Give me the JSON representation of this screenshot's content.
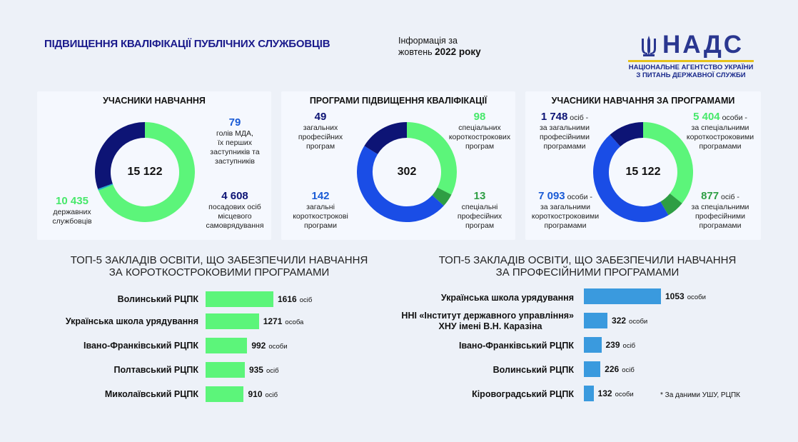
{
  "header": {
    "title": "ПІДВИЩЕННЯ КВАЛІФІКАЦІЇ ПУБЛІЧНИХ СЛУЖБОВЦІВ",
    "info_line1": "Інформація за",
    "info_line2_prefix": "жовтень ",
    "info_line2_bold": "2022 року",
    "logo_text": "НАДС",
    "logo_sub": "НАЦІОНАЛЬНЕ АГЕНТСТВО УКРАЇНИ З ПИТАНЬ ДЕРЖАВНОЇ СЛУЖБИ"
  },
  "colors": {
    "green": "#5cf57a",
    "navy": "#0d1475",
    "blue": "#1a4de6",
    "darkgreen": "#2e9e44",
    "teal": "#1ab0c8",
    "barblue": "#3a9ade"
  },
  "chart_data": [
    {
      "type": "pie",
      "title": "УЧАСНИКИ НАВЧАННЯ",
      "total": "15 122",
      "slices": [
        {
          "label": "державних службовців",
          "value": 10435,
          "display": "10 435",
          "color": "#5cf57a"
        },
        {
          "label": "голів МДА, їх перших заступників та заступників",
          "value": 79,
          "display": "79",
          "color": "#1ab0c8"
        },
        {
          "label": "посадових осіб місцевого самоврядування",
          "value": 4608,
          "display": "4 608",
          "color": "#0d1475"
        }
      ]
    },
    {
      "type": "pie",
      "title": "ПРОГРАМИ ПІДВИЩЕННЯ КВАЛІФІКАЦІЇ",
      "total": "302",
      "slices": [
        {
          "label": "спеціальних короткострокових програм",
          "value": 98,
          "display": "98",
          "color": "#5cf57a"
        },
        {
          "label": "спеціальні професійних програм",
          "value": 13,
          "display": "13",
          "color": "#2e9e44"
        },
        {
          "label": "загальні короткострокові програми",
          "value": 142,
          "display": "142",
          "color": "#1a4de6"
        },
        {
          "label": "загальних професійних програм",
          "value": 49,
          "display": "49",
          "color": "#0d1475"
        }
      ]
    },
    {
      "type": "pie",
      "title": "УЧАСНИКИ НАВЧАННЯ ЗА ПРОГРАМАМИ",
      "total": "15 122",
      "slices": [
        {
          "label": "за спеціальними короткостроковими програмами",
          "value": 5404,
          "display": "5 404",
          "unit": "особи -",
          "color": "#5cf57a"
        },
        {
          "label": "за спеціальними професійними програмами",
          "value": 877,
          "display": "877",
          "unit": "осіб -",
          "color": "#2e9e44"
        },
        {
          "label": "за загальними короткостроковими програмами",
          "value": 7093,
          "display": "7 093",
          "unit": "особи -",
          "color": "#1a4de6"
        },
        {
          "label": "за загальними професійними програмами",
          "value": 1748,
          "display": "1 748",
          "unit": "осіб -",
          "color": "#0d1475"
        }
      ]
    },
    {
      "type": "bar",
      "title_line1": "ТОП-5 ЗАКЛАДІВ ОСВІТИ, ЩО ЗАБЕЗПЕЧИЛИ НАВЧАННЯ",
      "title_line2": "ЗА КОРОТКОСТРОКОВИМИ ПРОГРАМАМИ",
      "color": "#5cf57a",
      "categories": [
        "Волинський РЦПК",
        "Українська школа урядування",
        "Івано-Франківський РЦПК",
        "Полтавський РЦПК",
        "Миколаївський РЦПК"
      ],
      "values": [
        1616,
        1271,
        992,
        935,
        910
      ],
      "units": [
        "осіб",
        "особа",
        "особи",
        "осіб",
        "осіб"
      ]
    },
    {
      "type": "bar",
      "title_line1": "ТОП-5 ЗАКЛАДІВ ОСВІТИ, ЩО ЗАБЕЗПЕЧИЛИ НАВЧАННЯ",
      "title_line2": "ЗА ПРОФЕСІЙНИМИ ПРОГРАМАМИ",
      "color": "#3a9ade",
      "categories": [
        "Українська школа урядування",
        "ННІ «Інститут державного управління» ХНУ імені В.Н. Каразіна",
        "Івано-Франківський РЦПК",
        "Волинський РЦПК",
        "Кіровоградський РЦПК"
      ],
      "values": [
        1053,
        322,
        239,
        226,
        132
      ],
      "units": [
        "особи",
        "особи",
        "осіб",
        "осіб",
        "особи"
      ]
    }
  ],
  "labels": {
    "p1_79_text": "голів МДА,\nїх перших\nзаступників та\nзаступників",
    "p1_10435_text": "державних\nслужбовців",
    "p1_4608_text": "посадових осіб\nмісцевого\nсамоврядування",
    "p2_49_text": "загальних\nпрофесійних\nпрограм",
    "p2_98_text": "спеціальних\nкороткострокових\nпрограм",
    "p2_142_text": "загальні\nкороткострокові\nпрограми",
    "p2_13_text": "спеціальні\nпрофесійних\nпрограм",
    "p3_1748_text": "за загальними\nпрофесійними\nпрограмами",
    "p3_5404_text": "за спеціальними\nкороткостроковими\nпрограмами",
    "p3_7093_text": "за загальними\nкороткостроковими\nпрограмами",
    "p3_877_text": "за спеціальними\nпрофесійними\nпрограмами",
    "bar2_cat2_line1": "ННІ «Інститут державного управління»",
    "bar2_cat2_line2": "ХНУ імені В.Н. Каразіна"
  },
  "note": "* За даними УШУ, РЦПК"
}
